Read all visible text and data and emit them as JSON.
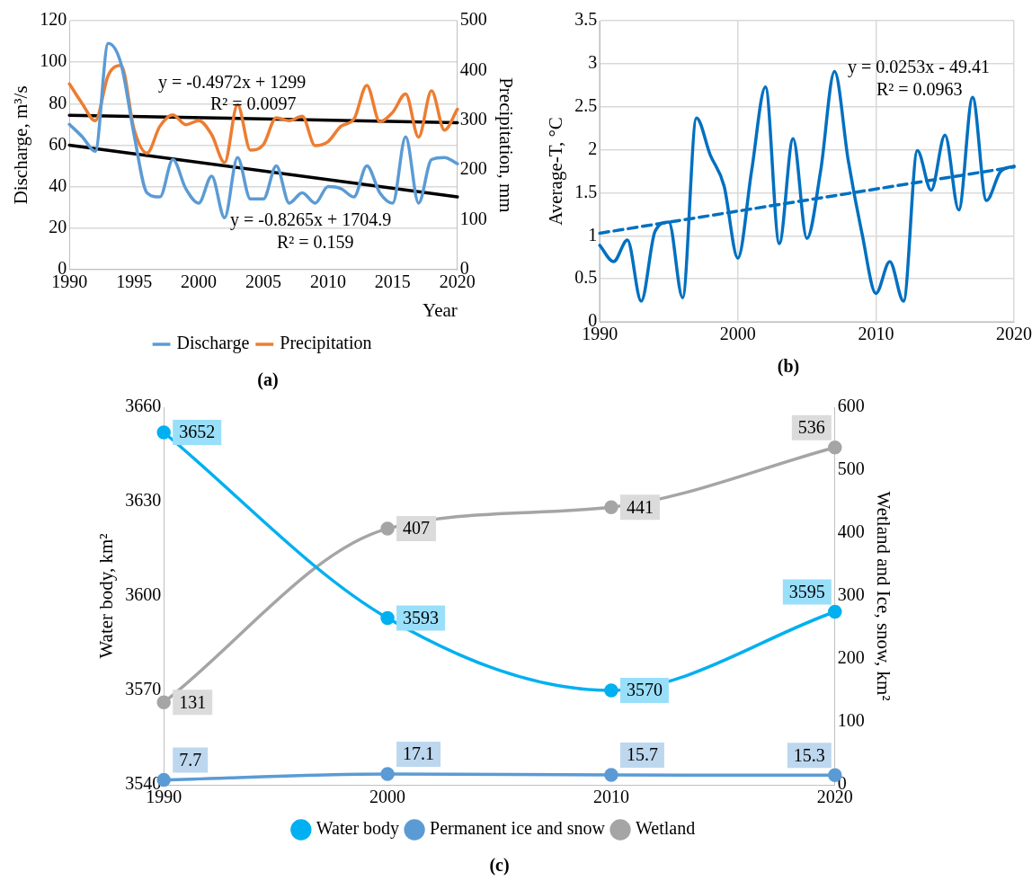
{
  "chart_data": [
    {
      "type": "line",
      "x": [
        1990,
        1991,
        1992,
        1993,
        1994,
        1995,
        1996,
        1997,
        1998,
        1999,
        2000,
        2001,
        2002,
        2003,
        2004,
        2005,
        2006,
        2007,
        2008,
        2009,
        2010,
        2011,
        2012,
        2013,
        2014,
        2015,
        2016,
        2017,
        2018,
        2019,
        2020
      ],
      "series": [
        {
          "name": "Discharge",
          "color": "#5b9bd5",
          "values": [
            70,
            64,
            57,
            109,
            99,
            65,
            37,
            35,
            53,
            39,
            32,
            45,
            25,
            54,
            34,
            34,
            50,
            32,
            37,
            32,
            40,
            39,
            35,
            50,
            37,
            32,
            64,
            32,
            53,
            54,
            51
          ]
        },
        {
          "name": "Precipitation",
          "color": "#ed7d31",
          "axis": "y2",
          "values": [
            373,
            333,
            299,
            390,
            410,
            282,
            234,
            288,
            311,
            291,
            299,
            271,
            215,
            331,
            240,
            251,
            305,
            299,
            308,
            249,
            257,
            288,
            302,
            370,
            297,
            316,
            353,
            266,
            359,
            280,
            322
          ]
        },
        {
          "type": "line",
          "color": "#000000",
          "values": [
            60,
            null,
            null,
            null,
            null,
            null,
            null,
            null,
            null,
            null,
            null,
            null,
            null,
            null,
            null,
            null,
            null,
            null,
            null,
            null,
            null,
            null,
            null,
            null,
            null,
            null,
            null,
            null,
            null,
            null,
            35
          ]
        },
        {
          "type": "line",
          "color": "#000000",
          "axis": "y2",
          "values": [
            310,
            null,
            null,
            null,
            null,
            null,
            null,
            null,
            null,
            null,
            null,
            null,
            null,
            null,
            null,
            null,
            null,
            null,
            null,
            null,
            null,
            null,
            null,
            null,
            null,
            null,
            null,
            null,
            null,
            null,
            295
          ]
        }
      ],
      "xlim": [
        1990,
        2020
      ],
      "xticks": [
        1990,
        1995,
        2000,
        2005,
        2010,
        2015,
        2020
      ],
      "ylim": [
        0,
        120
      ],
      "yticks": [
        0,
        20,
        40,
        60,
        80,
        100,
        120
      ],
      "y2lim": [
        0,
        500
      ],
      "y2ticks": [
        0,
        100,
        200,
        300,
        400,
        500
      ],
      "xlabel": "Year",
      "ylabel": "Discharge, m³/s",
      "y2label": "Precipitation, mm",
      "legend": "bottom",
      "grid": "y",
      "marker": "none",
      "annotations": [
        "y = -0.4972x + 1299",
        "R² = 0.0097",
        "y = -0.8265x + 1704.9",
        "R² = 0.159",
        "(a)"
      ]
    },
    {
      "type": "line",
      "x": [
        1990,
        1991,
        1992,
        1993,
        1994,
        1995,
        1996,
        1997,
        1998,
        1999,
        2000,
        2001,
        2002,
        2003,
        2004,
        2005,
        2006,
        2007,
        2008,
        2009,
        2010,
        2011,
        2012,
        2013,
        2014,
        2015,
        2016,
        2017,
        2018,
        2019,
        2020
      ],
      "series": [
        {
          "color": "#0070c0",
          "values": [
            0.89,
            0.7,
            0.95,
            0.24,
            1.05,
            1.16,
            0.28,
            2.37,
            1.94,
            1.58,
            0.74,
            1.76,
            2.73,
            0.91,
            2.13,
            0.97,
            1.76,
            2.91,
            1.87,
            1.02,
            0.33,
            0.7,
            0.24,
            1.99,
            1.53,
            2.17,
            1.3,
            2.61,
            1.41,
            1.74,
            1.81
          ]
        },
        {
          "type": "line",
          "color": "#0070c0",
          "line_style": "dashed",
          "values": [
            1.03,
            null,
            null,
            null,
            null,
            null,
            null,
            null,
            null,
            null,
            null,
            null,
            null,
            null,
            null,
            null,
            null,
            null,
            null,
            null,
            null,
            null,
            null,
            null,
            null,
            null,
            null,
            null,
            null,
            null,
            1.8
          ]
        }
      ],
      "xlim": [
        1990,
        2020
      ],
      "xticks": [
        1990,
        2000,
        2010,
        2020
      ],
      "ylim": [
        0,
        3.5
      ],
      "yticks": [
        0,
        0.5,
        1,
        1.5,
        2,
        2.5,
        3,
        3.5
      ],
      "ylabel": "Average-T, °C",
      "grid": true,
      "marker": "none",
      "annotations": [
        "y = 0.0253x - 49.41",
        "R² = 0.0963",
        "(b)"
      ]
    },
    {
      "type": "line",
      "categories": [
        "1990",
        "2000",
        "2010",
        "2020"
      ],
      "series": [
        {
          "name": "Water body",
          "color": "#00b0f0",
          "values": [
            3652,
            3593,
            3570,
            3595
          ]
        },
        {
          "name": "Permanent ice and snow",
          "color": "#5b9bd5",
          "axis": "y2",
          "values": [
            7.7,
            17.1,
            15.7,
            15.3
          ]
        },
        {
          "name": "Wetland",
          "color": "#a5a5a5",
          "axis": "y2",
          "values": [
            131,
            407,
            441,
            536
          ]
        }
      ],
      "ylim": [
        3540,
        3660
      ],
      "yticks": [
        3540,
        3570,
        3600,
        3630,
        3660
      ],
      "y2lim": [
        0,
        600
      ],
      "y2ticks": [
        0,
        100,
        200,
        300,
        400,
        500,
        600
      ],
      "ylabel": "Water body, km²",
      "y2label": "Wetland and Ice, snow, km²",
      "legend": "bottom",
      "marker": "circle",
      "data_labels": true,
      "annotations": [
        "(c)"
      ]
    }
  ]
}
